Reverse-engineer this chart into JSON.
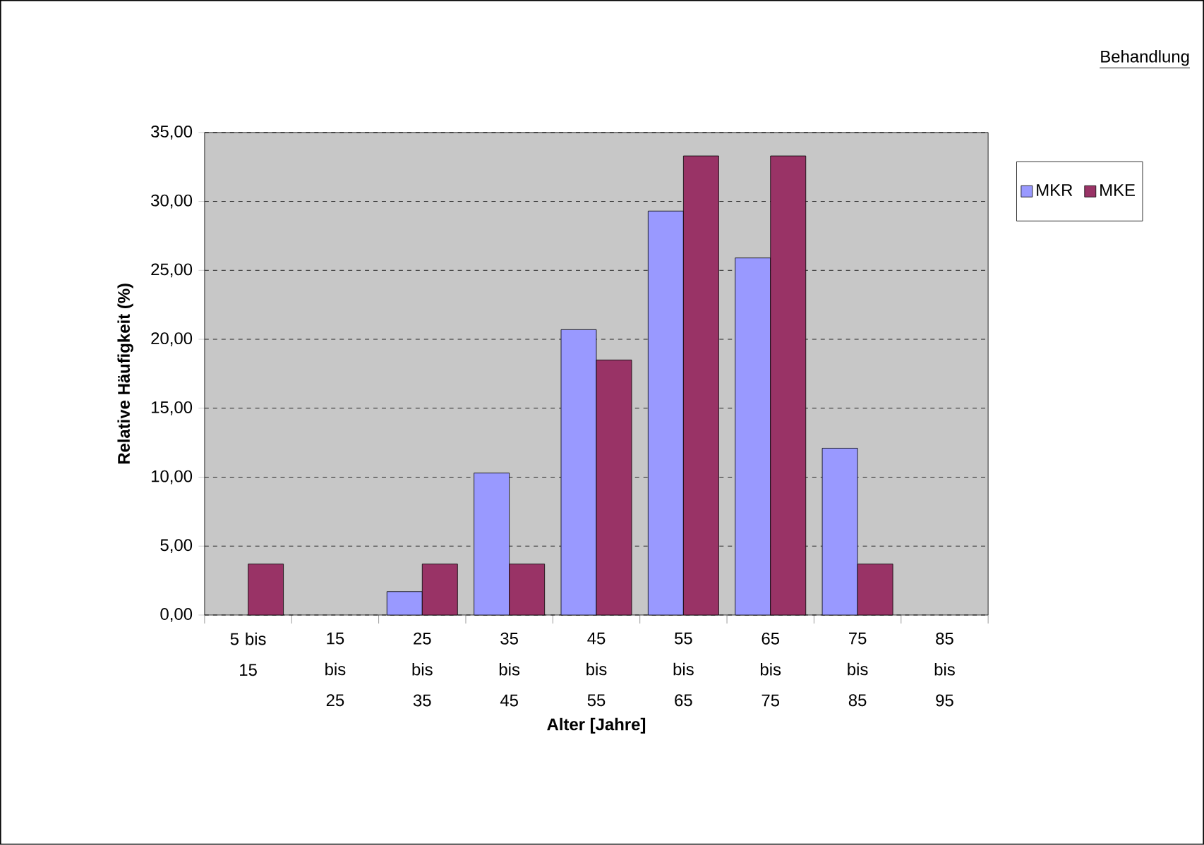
{
  "chart_data": {
    "type": "bar",
    "xlabel": "Alter [Jahre]",
    "ylabel": "Relative Häufigkeit (%)",
    "legend_title": "Behandlung",
    "categories": [
      "5 bis 15",
      "15 bis 25",
      "25 bis 35",
      "35 bis 45",
      "45 bis 55",
      "55 bis 65",
      "65 bis 75",
      "75 bis 85",
      "85 bis 95"
    ],
    "series": [
      {
        "name": "MKR",
        "color": "#9999ff",
        "values": [
          0,
          0,
          1.7,
          10.3,
          20.7,
          29.3,
          25.9,
          12.1,
          0
        ]
      },
      {
        "name": "MKE",
        "color": "#993366",
        "values": [
          3.7,
          0,
          3.7,
          3.7,
          18.5,
          33.3,
          33.3,
          3.7,
          0
        ]
      }
    ],
    "ylim": [
      0,
      35
    ],
    "yticks": [
      {
        "value": 0,
        "label": "0,00"
      },
      {
        "value": 5,
        "label": "5,00"
      },
      {
        "value": 10,
        "label": "10,00"
      },
      {
        "value": 15,
        "label": "15,00"
      },
      {
        "value": 20,
        "label": "20,00"
      },
      {
        "value": 25,
        "label": "25,00"
      },
      {
        "value": 30,
        "label": "30,00"
      },
      {
        "value": 35,
        "label": "35,00"
      }
    ],
    "grid": "y",
    "legend": "top right"
  }
}
